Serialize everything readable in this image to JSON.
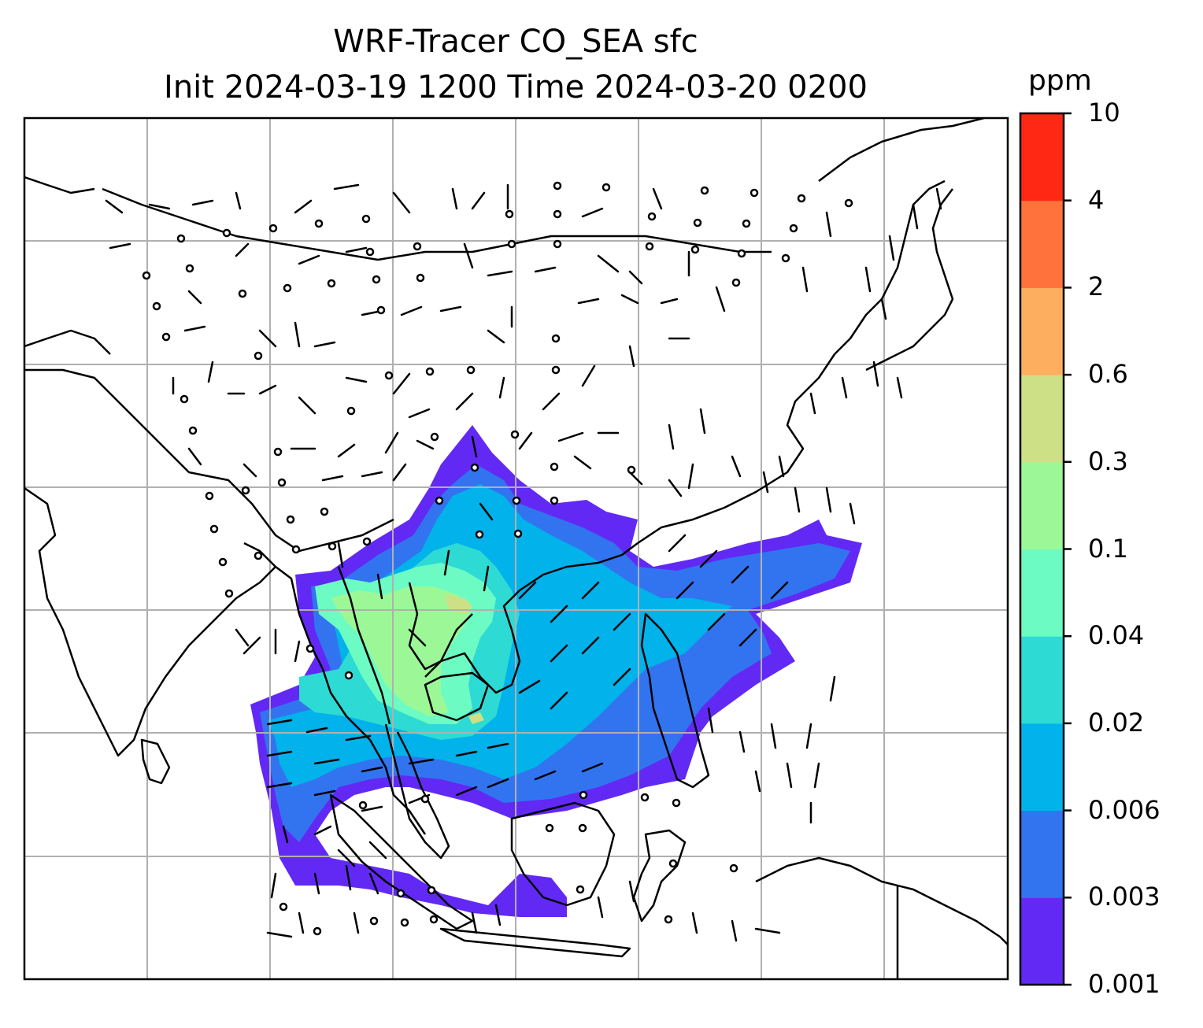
{
  "title": {
    "line1": "WRF-Tracer CO_SEA sfc",
    "line2": "Init 2024-03-19 1200 Time 2024-03-20 0200"
  },
  "colorbar": {
    "unit": "ppm",
    "levels": [
      "0.001",
      "0.003",
      "0.006",
      "0.02",
      "0.04",
      "0.1",
      "0.3",
      "0.6",
      "2",
      "4",
      "10"
    ],
    "colors": [
      "#6229f5",
      "#3274ef",
      "#02b2ea",
      "#2ddbd4",
      "#6cfcc3",
      "#9cf897",
      "#cde085",
      "#fdaf5f",
      "#ff723c",
      "#ff2815"
    ]
  },
  "map": {
    "region": "Southeast and East Asia",
    "field": "CO tracer surface concentration with wind barbs",
    "gridlines": true,
    "coastline_color": "#000000",
    "grid_color": "#b0b0b0"
  }
}
